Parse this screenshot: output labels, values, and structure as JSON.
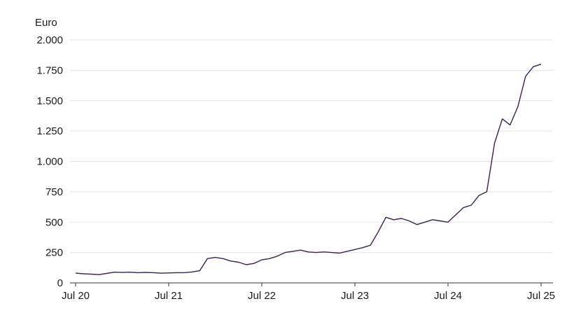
{
  "chart_data": {
    "type": "line",
    "title": "",
    "xlabel": "",
    "ylabel": "Euro",
    "ylim": [
      0,
      2000
    ],
    "yticks": [
      0,
      250,
      500,
      750,
      1000,
      1250,
      1500,
      1750,
      2000
    ],
    "ytick_labels": [
      "0",
      "250",
      "500",
      "750",
      "1.000",
      "1.250",
      "1.500",
      "1.750",
      "2.000"
    ],
    "xlim": [
      "2020-07",
      "2025-07"
    ],
    "xticks": [
      "2020-07",
      "2021-07",
      "2022-07",
      "2023-07",
      "2024-07",
      "2025-07"
    ],
    "xtick_labels": [
      "Jul 20",
      "Jul 21",
      "Jul 22",
      "Jul 23",
      "Jul 24",
      "Jul 25"
    ],
    "grid": "horizontal",
    "line_color": "#3b1f57",
    "series": [
      {
        "x": [
          "2020-07",
          "2020-08",
          "2020-09",
          "2020-10",
          "2020-11",
          "2020-12",
          "2021-01",
          "2021-02",
          "2021-03",
          "2021-04",
          "2021-05",
          "2021-06",
          "2021-07",
          "2021-08",
          "2021-09",
          "2021-10",
          "2021-11",
          "2021-12",
          "2022-01",
          "2022-02",
          "2022-03",
          "2022-04",
          "2022-05",
          "2022-06",
          "2022-07",
          "2022-08",
          "2022-09",
          "2022-10",
          "2022-11",
          "2022-12",
          "2023-01",
          "2023-02",
          "2023-03",
          "2023-04",
          "2023-05",
          "2023-06",
          "2023-07",
          "2023-08",
          "2023-09",
          "2023-10",
          "2023-11",
          "2023-12",
          "2024-01",
          "2024-02",
          "2024-03",
          "2024-04",
          "2024-05",
          "2024-06",
          "2024-07",
          "2024-08",
          "2024-09",
          "2024-10",
          "2024-11",
          "2024-12",
          "2025-01",
          "2025-02",
          "2025-03",
          "2025-04",
          "2025-05",
          "2025-06",
          "2025-07"
        ],
        "values": [
          80,
          75,
          72,
          68,
          78,
          88,
          86,
          88,
          84,
          86,
          84,
          80,
          82,
          84,
          84,
          90,
          100,
          200,
          210,
          200,
          180,
          170,
          150,
          160,
          190,
          200,
          220,
          250,
          260,
          270,
          255,
          250,
          255,
          250,
          245,
          260,
          275,
          290,
          310,
          420,
          540,
          520,
          530,
          510,
          480,
          500,
          520,
          510,
          500,
          560,
          620,
          640,
          720,
          750,
          1150,
          1350,
          1300,
          1450,
          1700,
          1780,
          1800
        ]
      }
    ]
  }
}
